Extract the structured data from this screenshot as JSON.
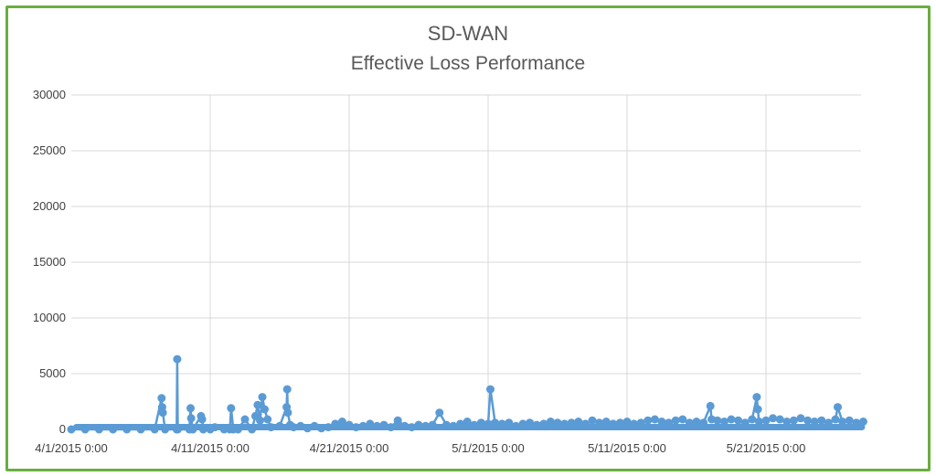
{
  "chart_data": {
    "type": "line",
    "title": "SD-WAN",
    "subtitle": "Effective Loss Performance",
    "xlabel": "",
    "ylabel": "",
    "ylim": [
      0,
      30000
    ],
    "y_ticks": [
      "30000",
      "25000",
      "20000",
      "15000",
      "10000",
      "5000",
      "0"
    ],
    "x_ticks": [
      "4/1/2015 0:00",
      "4/11/2015 0:00",
      "4/21/2015 0:00",
      "5/1/2015 0:00",
      "5/11/2015 0:00",
      "5/21/2015 0:00"
    ],
    "x_range": [
      "2015-04-01",
      "2015-05-28"
    ],
    "grid": true,
    "series_color": "#5b9bd5",
    "marker": "circle",
    "series": [
      {
        "points": [
          [
            "2015-04-01",
            0
          ],
          [
            "2015-04-02",
            0
          ],
          [
            "2015-04-03",
            0
          ],
          [
            "2015-04-04",
            0
          ],
          [
            "2015-04-05",
            0
          ],
          [
            "2015-04-06",
            0
          ],
          [
            "2015-04-07",
            0
          ],
          [
            "2015-04-07 12:00",
            2800
          ],
          [
            "2015-04-07 13:00",
            2000
          ],
          [
            "2015-04-07 14:00",
            1500
          ],
          [
            "2015-04-07 18:00",
            0
          ],
          [
            "2015-04-08 14:00",
            0
          ],
          [
            "2015-04-08 15:00",
            6300
          ],
          [
            "2015-04-08 16:00",
            0
          ],
          [
            "2015-04-09 12:00",
            0
          ],
          [
            "2015-04-09 14:00",
            1900
          ],
          [
            "2015-04-09 15:00",
            1000
          ],
          [
            "2015-04-09 18:00",
            0
          ],
          [
            "2015-04-10 08:00",
            1200
          ],
          [
            "2015-04-10 10:00",
            900
          ],
          [
            "2015-04-10 12:00",
            0
          ],
          [
            "2015-04-11",
            0
          ],
          [
            "2015-04-11 08:00",
            200
          ],
          [
            "2015-04-12",
            0
          ],
          [
            "2015-04-12 10:00",
            0
          ],
          [
            "2015-04-12 12:00",
            1900
          ],
          [
            "2015-04-12 16:00",
            0
          ],
          [
            "2015-04-13",
            0
          ],
          [
            "2015-04-13 12:00",
            900
          ],
          [
            "2015-04-14",
            0
          ],
          [
            "2015-04-14 06:00",
            1200
          ],
          [
            "2015-04-14 10:00",
            2200
          ],
          [
            "2015-04-14 14:00",
            800
          ],
          [
            "2015-04-14 18:00",
            2900
          ],
          [
            "2015-04-14 22:00",
            1800
          ],
          [
            "2015-04-15 03:00",
            900
          ],
          [
            "2015-04-15 09:00",
            200
          ],
          [
            "2015-04-16",
            300
          ],
          [
            "2015-04-16 12:00",
            2000
          ],
          [
            "2015-04-16 13:00",
            3600
          ],
          [
            "2015-04-16 14:00",
            1500
          ],
          [
            "2015-04-16 18:00",
            400
          ],
          [
            "2015-04-17",
            200
          ],
          [
            "2015-04-17 12:00",
            300
          ],
          [
            "2015-04-18",
            100
          ],
          [
            "2015-04-18 12:00",
            300
          ],
          [
            "2015-04-19",
            100
          ],
          [
            "2015-04-19 12:00",
            200
          ],
          [
            "2015-04-20",
            500
          ],
          [
            "2015-04-20 12:00",
            700
          ],
          [
            "2015-04-21",
            400
          ],
          [
            "2015-04-21 12:00",
            200
          ],
          [
            "2015-04-22",
            300
          ],
          [
            "2015-04-22 12:00",
            500
          ],
          [
            "2015-04-23",
            300
          ],
          [
            "2015-04-23 12:00",
            400
          ],
          [
            "2015-04-24",
            200
          ],
          [
            "2015-04-24 12:00",
            800
          ],
          [
            "2015-04-25",
            300
          ],
          [
            "2015-04-25 12:00",
            200
          ],
          [
            "2015-04-26",
            400
          ],
          [
            "2015-04-26 12:00",
            300
          ],
          [
            "2015-04-27",
            400
          ],
          [
            "2015-04-27 12:00",
            1500
          ],
          [
            "2015-04-28",
            400
          ],
          [
            "2015-04-28 12:00",
            300
          ],
          [
            "2015-04-29",
            500
          ],
          [
            "2015-04-29 12:00",
            700
          ],
          [
            "2015-04-30",
            400
          ],
          [
            "2015-04-30 12:00",
            600
          ],
          [
            "2015-05-01",
            500
          ],
          [
            "2015-05-01 04:00",
            3600
          ],
          [
            "2015-05-01 12:00",
            600
          ],
          [
            "2015-05-02",
            500
          ],
          [
            "2015-05-02 12:00",
            600
          ],
          [
            "2015-05-03",
            300
          ],
          [
            "2015-05-03 12:00",
            500
          ],
          [
            "2015-05-04",
            600
          ],
          [
            "2015-05-04 12:00",
            400
          ],
          [
            "2015-05-05",
            500
          ],
          [
            "2015-05-05 12:00",
            700
          ],
          [
            "2015-05-06",
            600
          ],
          [
            "2015-05-06 12:00",
            500
          ],
          [
            "2015-05-07",
            600
          ],
          [
            "2015-05-07 12:00",
            700
          ],
          [
            "2015-05-08",
            500
          ],
          [
            "2015-05-08 12:00",
            800
          ],
          [
            "2015-05-09",
            600
          ],
          [
            "2015-05-09 12:00",
            700
          ],
          [
            "2015-05-10",
            500
          ],
          [
            "2015-05-10 12:00",
            600
          ],
          [
            "2015-05-11",
            700
          ],
          [
            "2015-05-11 12:00",
            500
          ],
          [
            "2015-05-12",
            600
          ],
          [
            "2015-05-12 12:00",
            800
          ],
          [
            "2015-05-13",
            900
          ],
          [
            "2015-05-13 12:00",
            700
          ],
          [
            "2015-05-14",
            600
          ],
          [
            "2015-05-14 12:00",
            800
          ],
          [
            "2015-05-15",
            900
          ],
          [
            "2015-05-15 12:00",
            600
          ],
          [
            "2015-05-16",
            700
          ],
          [
            "2015-05-16 12:00",
            600
          ],
          [
            "2015-05-17",
            2100
          ],
          [
            "2015-05-17 02:00",
            900
          ],
          [
            "2015-05-17 12:00",
            800
          ],
          [
            "2015-05-18",
            700
          ],
          [
            "2015-05-18 12:00",
            900
          ],
          [
            "2015-05-19",
            800
          ],
          [
            "2015-05-19 12:00",
            600
          ],
          [
            "2015-05-20",
            900
          ],
          [
            "2015-05-20 08:00",
            2900
          ],
          [
            "2015-05-20 10:00",
            1800
          ],
          [
            "2015-05-20 12:00",
            700
          ],
          [
            "2015-05-21",
            800
          ],
          [
            "2015-05-21 12:00",
            1000
          ],
          [
            "2015-05-22",
            900
          ],
          [
            "2015-05-22 12:00",
            700
          ],
          [
            "2015-05-23",
            800
          ],
          [
            "2015-05-23 12:00",
            1000
          ],
          [
            "2015-05-24",
            800
          ],
          [
            "2015-05-24 12:00",
            700
          ],
          [
            "2015-05-25",
            800
          ],
          [
            "2015-05-25 12:00",
            600
          ],
          [
            "2015-05-26",
            900
          ],
          [
            "2015-05-26 04:00",
            2000
          ],
          [
            "2015-05-26 12:00",
            700
          ],
          [
            "2015-05-27",
            800
          ],
          [
            "2015-05-27 12:00",
            600
          ],
          [
            "2015-05-28",
            700
          ]
        ]
      }
    ]
  }
}
